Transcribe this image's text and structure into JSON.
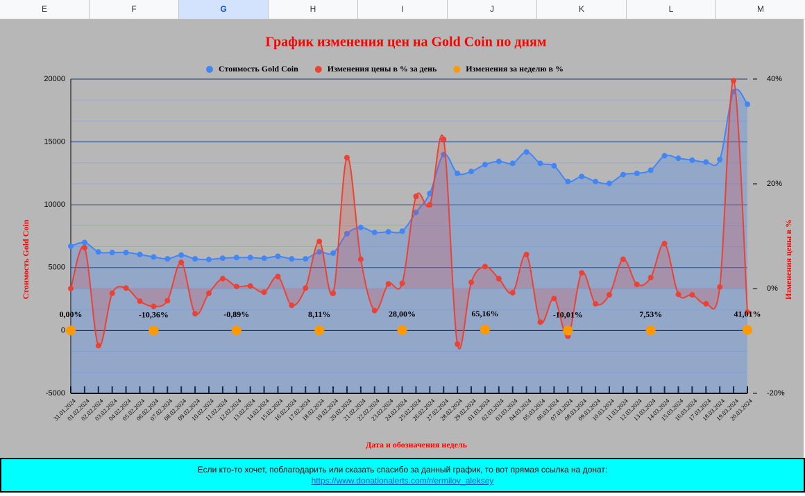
{
  "columns": [
    "E",
    "F",
    "G",
    "H",
    "I",
    "J",
    "K",
    "L",
    "M"
  ],
  "chart_data": {
    "type": "line",
    "title": "График изменения цен на Gold Coin по дням",
    "x_label": "Дата и обозначения недель",
    "y_label": "Стоимость Gold Coin",
    "y2_label": "Изменения цены в %",
    "categories": [
      "31.01.2024",
      "01.02.2024",
      "02.02.2024",
      "03.02.2024",
      "04.02.2024",
      "05.02.2024",
      "06.02.2024",
      "07.02.2024",
      "08.02.2024",
      "09.02.2024",
      "10.02.2024",
      "11.02.2024",
      "12.02.2024",
      "13.02.2024",
      "14.02.2024",
      "15.02.2024",
      "16.02.2024",
      "17.02.2024",
      "18.02.2024",
      "19.02.2024",
      "20.02.2024",
      "21.02.2024",
      "22.02.2024",
      "23.02.2024",
      "24.02.2024",
      "25.02.2024",
      "26.02.2024",
      "27.02.2024",
      "28.02.2024",
      "29.02.2024",
      "01.03.2024",
      "02.03.2024",
      "03.03.2024",
      "04.03.2024",
      "05.03.2024",
      "06.03.2024",
      "07.03.2024",
      "08.03.2024",
      "09.03.2024",
      "10.03.2024",
      "11.03.2024",
      "12.03.2024",
      "13.03.2024",
      "14.03.2024",
      "15.03.2024",
      "16.03.2024",
      "17.03.2024",
      "18.03.2024",
      "19.03.2024",
      "20.03.2024"
    ],
    "series": [
      {
        "name": "Стоимость Gold Coin",
        "color": "#4285f4",
        "values": [
          6700,
          7000,
          6250,
          6200,
          6200,
          6050,
          5850,
          5700,
          6000,
          5700,
          5650,
          5750,
          5800,
          5800,
          5750,
          5900,
          5700,
          5700,
          6250,
          6150,
          7700,
          8200,
          7800,
          7850,
          7900,
          9400,
          10900,
          14000,
          12500,
          12650,
          13200,
          13450,
          13300,
          14200,
          13300,
          13100,
          11850,
          12250,
          11850,
          11700,
          12400,
          12500,
          12750,
          13900,
          13700,
          13550,
          13400,
          13600,
          19000,
          18000
        ]
      },
      {
        "name": "Изменения цены в % за день",
        "color": "#ea4335",
        "axis": "y2",
        "values": [
          0,
          7.8,
          -10.9,
          -0.9,
          0.1,
          -2.4,
          -3.4,
          -2.3,
          5,
          -4.8,
          -0.9,
          1.9,
          0.4,
          0.5,
          -0.7,
          2.3,
          -3.2,
          0.1,
          9,
          -0.9,
          25,
          5.6,
          -4.2,
          0.9,
          1,
          17.6,
          16,
          28.5,
          -10.6,
          1.2,
          4.2,
          1.9,
          -0.8,
          6.5,
          -6.4,
          -1.9,
          -9.1,
          3,
          -2.9,
          -1.2,
          5.6,
          0.8,
          2.1,
          8.6,
          -1.1,
          -1.2,
          -2.9,
          0.3,
          39.7,
          -4.5
        ]
      },
      {
        "name": "Изменения за неделю в %",
        "color": "#ff9900",
        "x": [
          "31.01.2024",
          "06.02.2024",
          "12.02.2024",
          "18.02.2024",
          "24.02.2024",
          "01.03.2024",
          "07.03.2024",
          "13.03.2024",
          "20.03.2024"
        ],
        "values": [
          0,
          -10.36,
          -0.89,
          8.11,
          28,
          65.16,
          -10.01,
          7.53,
          41.01
        ],
        "value_labels": [
          "0,00%",
          "-10,36%",
          "-0,89%",
          "8,11%",
          "28,00%",
          "65,16%",
          "-10,01%",
          "7,53%",
          "41,01%"
        ]
      }
    ],
    "ylim": [
      -5000,
      20000
    ],
    "yticks": [
      -5000,
      0,
      5000,
      10000,
      15000,
      20000
    ],
    "y2lim": [
      -20,
      40
    ],
    "y2ticks": [
      {
        "value": -20,
        "label": "-20%"
      },
      {
        "value": 0,
        "label": "0%"
      },
      {
        "value": 20,
        "label": "20%"
      },
      {
        "value": 40,
        "label": "40%"
      }
    ]
  },
  "footer": {
    "text": "Если кто-то хочет, поблагодарить или сказать спасибо за данный график, то вот прямая ссылка на донат:",
    "link": "https://www.donationalerts.com/r/ermilov_aleksey"
  }
}
